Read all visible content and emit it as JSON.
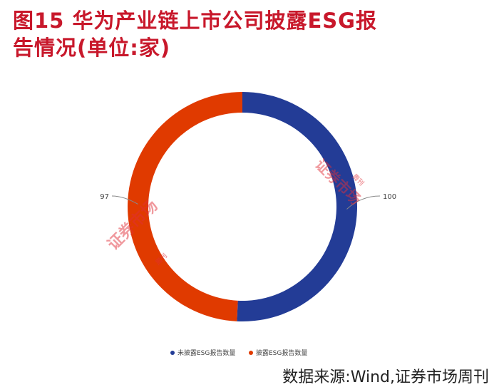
{
  "title": {
    "line1": "图15  华为产业链上市公司披露ESG报",
    "line2": "告情况(单位:家)"
  },
  "chart_data": {
    "type": "pie",
    "style": "donut",
    "series": [
      {
        "name": "未披露ESG报告数量",
        "value": 100,
        "label": "100",
        "color": "#233c96"
      },
      {
        "name": "披露ESG报告数量",
        "value": 97,
        "label": "97",
        "color": "#e03a00"
      }
    ],
    "legend_position": "bottom"
  },
  "watermarks": [
    "证券市场",
    "周刊"
  ],
  "source": "数据来源:Wind,证券市场周刊"
}
